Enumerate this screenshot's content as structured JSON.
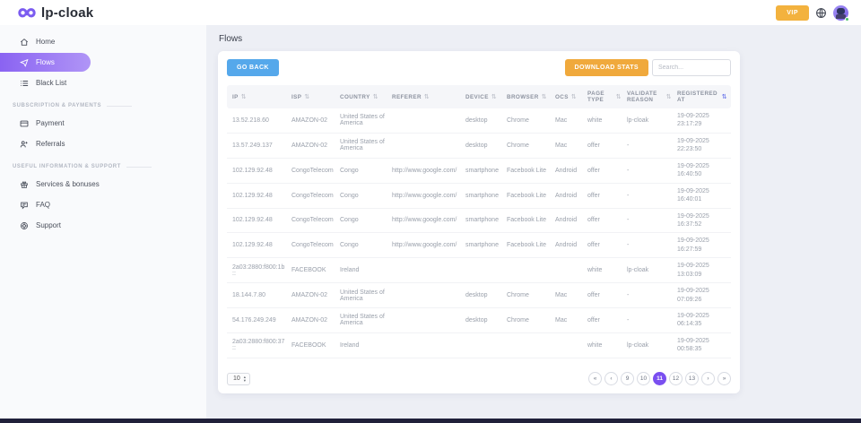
{
  "colors": {
    "accent": "#7c5cf4",
    "vip": "#f3b23e",
    "go_back": "#55a8eb",
    "download": "#f0a93c",
    "active_page": "#7a4ff0"
  },
  "header": {
    "logo_text": "lp-cloak",
    "vip_label": "VIP"
  },
  "sidebar": {
    "sections": [
      {
        "label": "",
        "items": [
          {
            "label": "Home",
            "icon": "home-icon",
            "active": false
          },
          {
            "label": "Flows",
            "icon": "flows-icon",
            "active": true
          },
          {
            "label": "Black List",
            "icon": "blacklist-icon",
            "active": false
          }
        ]
      },
      {
        "label": "Subscription & payments",
        "items": [
          {
            "label": "Payment",
            "icon": "payment-icon",
            "active": false
          },
          {
            "label": "Referrals",
            "icon": "referrals-icon",
            "active": false
          }
        ]
      },
      {
        "label": "Useful information & support",
        "items": [
          {
            "label": "Services & bonuses",
            "icon": "services-icon",
            "active": false
          },
          {
            "label": "FAQ",
            "icon": "faq-icon",
            "active": false
          },
          {
            "label": "Support",
            "icon": "support-icon",
            "active": false
          }
        ]
      }
    ]
  },
  "main": {
    "title": "Flows",
    "toolbar": {
      "go_back": "GO BACK",
      "download_stats": "DOWNLOAD STATS",
      "search_placeholder": "Search..."
    },
    "table": {
      "columns": [
        "IP",
        "ISP",
        "COUNTRY",
        "REFERER",
        "DEVICE",
        "BROWSER",
        "OCS",
        "PAGE TYPE",
        "VALIDATE REASON",
        "REGISTERED AT"
      ],
      "sorted_column": "REGISTERED AT",
      "rows": [
        {
          "ip": "13.52.218.60",
          "isp": "AMAZON-02",
          "country": "United States of America",
          "referer": "",
          "device": "desktop",
          "browser": "Chrome",
          "ocs": "Mac",
          "page_type": "white",
          "validate_reason": "lp-cloak",
          "registered_date": "19-09-2025",
          "registered_time": "23:17:29"
        },
        {
          "ip": "13.57.249.137",
          "isp": "AMAZON-02",
          "country": "United States of America",
          "referer": "",
          "device": "desktop",
          "browser": "Chrome",
          "ocs": "Mac",
          "page_type": "offer",
          "validate_reason": "-",
          "registered_date": "19-09-2025",
          "registered_time": "22:23:50"
        },
        {
          "ip": "102.129.92.48",
          "isp": "CongoTelecom",
          "country": "Congo",
          "referer": "http://www.google.com/",
          "device": "smartphone",
          "browser": "Facebook Lite",
          "ocs": "Android",
          "page_type": "offer",
          "validate_reason": "-",
          "registered_date": "19-09-2025",
          "registered_time": "16:40:50"
        },
        {
          "ip": "102.129.92.48",
          "isp": "CongoTelecom",
          "country": "Congo",
          "referer": "http://www.google.com/",
          "device": "smartphone",
          "browser": "Facebook Lite",
          "ocs": "Android",
          "page_type": "offer",
          "validate_reason": "-",
          "registered_date": "19-09-2025",
          "registered_time": "16:40:01"
        },
        {
          "ip": "102.129.92.48",
          "isp": "CongoTelecom",
          "country": "Congo",
          "referer": "http://www.google.com/",
          "device": "smartphone",
          "browser": "Facebook Lite",
          "ocs": "Android",
          "page_type": "offer",
          "validate_reason": "-",
          "registered_date": "19-09-2025",
          "registered_time": "16:37:52"
        },
        {
          "ip": "102.129.92.48",
          "isp": "CongoTelecom",
          "country": "Congo",
          "referer": "http://www.google.com/",
          "device": "smartphone",
          "browser": "Facebook Lite",
          "ocs": "Android",
          "page_type": "offer",
          "validate_reason": "-",
          "registered_date": "19-09-2025",
          "registered_time": "16:27:59"
        },
        {
          "ip": "2a03:2880:f800:1b::",
          "isp": "FACEBOOK",
          "country": "Ireland",
          "referer": "",
          "device": "",
          "browser": "",
          "ocs": "",
          "page_type": "white",
          "validate_reason": "lp-cloak",
          "registered_date": "19-09-2025",
          "registered_time": "13:03:09"
        },
        {
          "ip": "18.144.7.80",
          "isp": "AMAZON-02",
          "country": "United States of America",
          "referer": "",
          "device": "desktop",
          "browser": "Chrome",
          "ocs": "Mac",
          "page_type": "offer",
          "validate_reason": "-",
          "registered_date": "19-09-2025",
          "registered_time": "07:09:26"
        },
        {
          "ip": "54.176.249.249",
          "isp": "AMAZON-02",
          "country": "United States of America",
          "referer": "",
          "device": "desktop",
          "browser": "Chrome",
          "ocs": "Mac",
          "page_type": "offer",
          "validate_reason": "-",
          "registered_date": "19-09-2025",
          "registered_time": "06:14:35"
        },
        {
          "ip": "2a03:2880:f800:37::",
          "isp": "FACEBOOK",
          "country": "Ireland",
          "referer": "",
          "device": "",
          "browser": "",
          "ocs": "",
          "page_type": "white",
          "validate_reason": "lp-cloak",
          "registered_date": "19-09-2025",
          "registered_time": "00:58:35"
        }
      ]
    },
    "footer": {
      "per_page": "10",
      "pages": [
        "9",
        "10",
        "11",
        "12",
        "13"
      ],
      "active_page": "11",
      "arrows": {
        "first": "«",
        "prev": "‹",
        "next": "›",
        "last": "»"
      }
    }
  }
}
